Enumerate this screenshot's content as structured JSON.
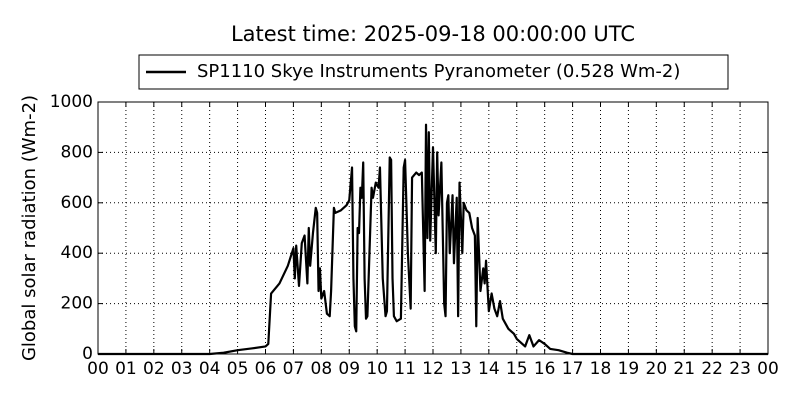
{
  "chart_data": {
    "type": "line",
    "title": "Latest time: 2025-09-18 00:00:00 UTC",
    "y_label": "Global solar radiation (Wm-2)",
    "legend": "top",
    "grid": true,
    "xlim": [
      0,
      24
    ],
    "ylim": [
      0,
      1000
    ],
    "yticks": [
      0,
      200,
      400,
      600,
      800,
      1000
    ],
    "xticks": [
      {
        "value": 0,
        "label": "00"
      },
      {
        "value": 1,
        "label": "01"
      },
      {
        "value": 2,
        "label": "02"
      },
      {
        "value": 3,
        "label": "03"
      },
      {
        "value": 4,
        "label": "04"
      },
      {
        "value": 5,
        "label": "05"
      },
      {
        "value": 6,
        "label": "06"
      },
      {
        "value": 7,
        "label": "07"
      },
      {
        "value": 8,
        "label": "08"
      },
      {
        "value": 9,
        "label": "09"
      },
      {
        "value": 10,
        "label": "10"
      },
      {
        "value": 11,
        "label": "11"
      },
      {
        "value": 12,
        "label": "12"
      },
      {
        "value": 13,
        "label": "13"
      },
      {
        "value": 14,
        "label": "14"
      },
      {
        "value": 15,
        "label": "15"
      },
      {
        "value": 16,
        "label": "16"
      },
      {
        "value": 17,
        "label": "17"
      },
      {
        "value": 18,
        "label": "18"
      },
      {
        "value": 19,
        "label": "19"
      },
      {
        "value": 20,
        "label": "20"
      },
      {
        "value": 21,
        "label": "21"
      },
      {
        "value": 22,
        "label": "22"
      },
      {
        "value": 23,
        "label": "23"
      },
      {
        "value": 24,
        "label": "00"
      }
    ],
    "x": [
      0,
      4.0,
      4.5,
      5.0,
      5.5,
      6.0,
      6.1,
      6.2,
      6.5,
      6.8,
      7.0,
      7.05,
      7.1,
      7.2,
      7.3,
      7.4,
      7.5,
      7.55,
      7.6,
      7.7,
      7.8,
      7.85,
      7.9,
      7.95,
      8.0,
      8.1,
      8.2,
      8.3,
      8.35,
      8.45,
      8.5,
      8.7,
      8.9,
      9.0,
      9.1,
      9.15,
      9.2,
      9.25,
      9.3,
      9.35,
      9.4,
      9.45,
      9.5,
      9.55,
      9.6,
      9.65,
      9.8,
      9.85,
      9.95,
      10.05,
      10.1,
      10.2,
      10.3,
      10.35,
      10.45,
      10.5,
      10.55,
      10.6,
      10.7,
      10.85,
      10.95,
      11.0,
      11.1,
      11.2,
      11.25,
      11.4,
      11.5,
      11.6,
      11.7,
      11.75,
      11.8,
      11.85,
      11.9,
      12.0,
      12.1,
      12.15,
      12.2,
      12.3,
      12.4,
      12.45,
      12.5,
      12.55,
      12.6,
      12.7,
      12.75,
      12.85,
      12.9,
      12.95,
      13.05,
      13.1,
      13.2,
      13.3,
      13.4,
      13.5,
      13.55,
      13.6,
      13.7,
      13.8,
      13.85,
      13.9,
      14.0,
      14.1,
      14.2,
      14.3,
      14.4,
      14.5,
      14.7,
      14.9,
      15.0,
      15.1,
      15.3,
      15.45,
      15.6,
      15.8,
      16.0,
      16.2,
      16.5,
      16.8,
      17.0,
      24
    ],
    "series": [
      {
        "name": "SP1110 Skye Instruments Pyranometer (0.528 Wm-2)",
        "color": "#000000",
        "values": [
          0,
          0,
          5,
          15,
          22,
          30,
          40,
          240,
          280,
          350,
          420,
          300,
          430,
          270,
          440,
          470,
          280,
          500,
          350,
          480,
          580,
          560,
          250,
          340,
          220,
          250,
          160,
          150,
          250,
          580,
          560,
          570,
          590,
          610,
          740,
          300,
          110,
          90,
          500,
          480,
          660,
          620,
          760,
          300,
          140,
          150,
          660,
          620,
          680,
          660,
          740,
          300,
          150,
          170,
          780,
          770,
          300,
          150,
          130,
          140,
          740,
          770,
          400,
          180,
          700,
          720,
          710,
          720,
          250,
          910,
          460,
          880,
          450,
          820,
          400,
          800,
          550,
          760,
          200,
          150,
          600,
          630,
          400,
          630,
          360,
          620,
          150,
          680,
          400,
          600,
          570,
          560,
          500,
          470,
          110,
          540,
          250,
          340,
          280,
          370,
          170,
          240,
          180,
          150,
          210,
          140,
          100,
          80,
          60,
          50,
          30,
          75,
          30,
          55,
          40,
          20,
          15,
          5,
          0,
          0
        ]
      }
    ]
  }
}
